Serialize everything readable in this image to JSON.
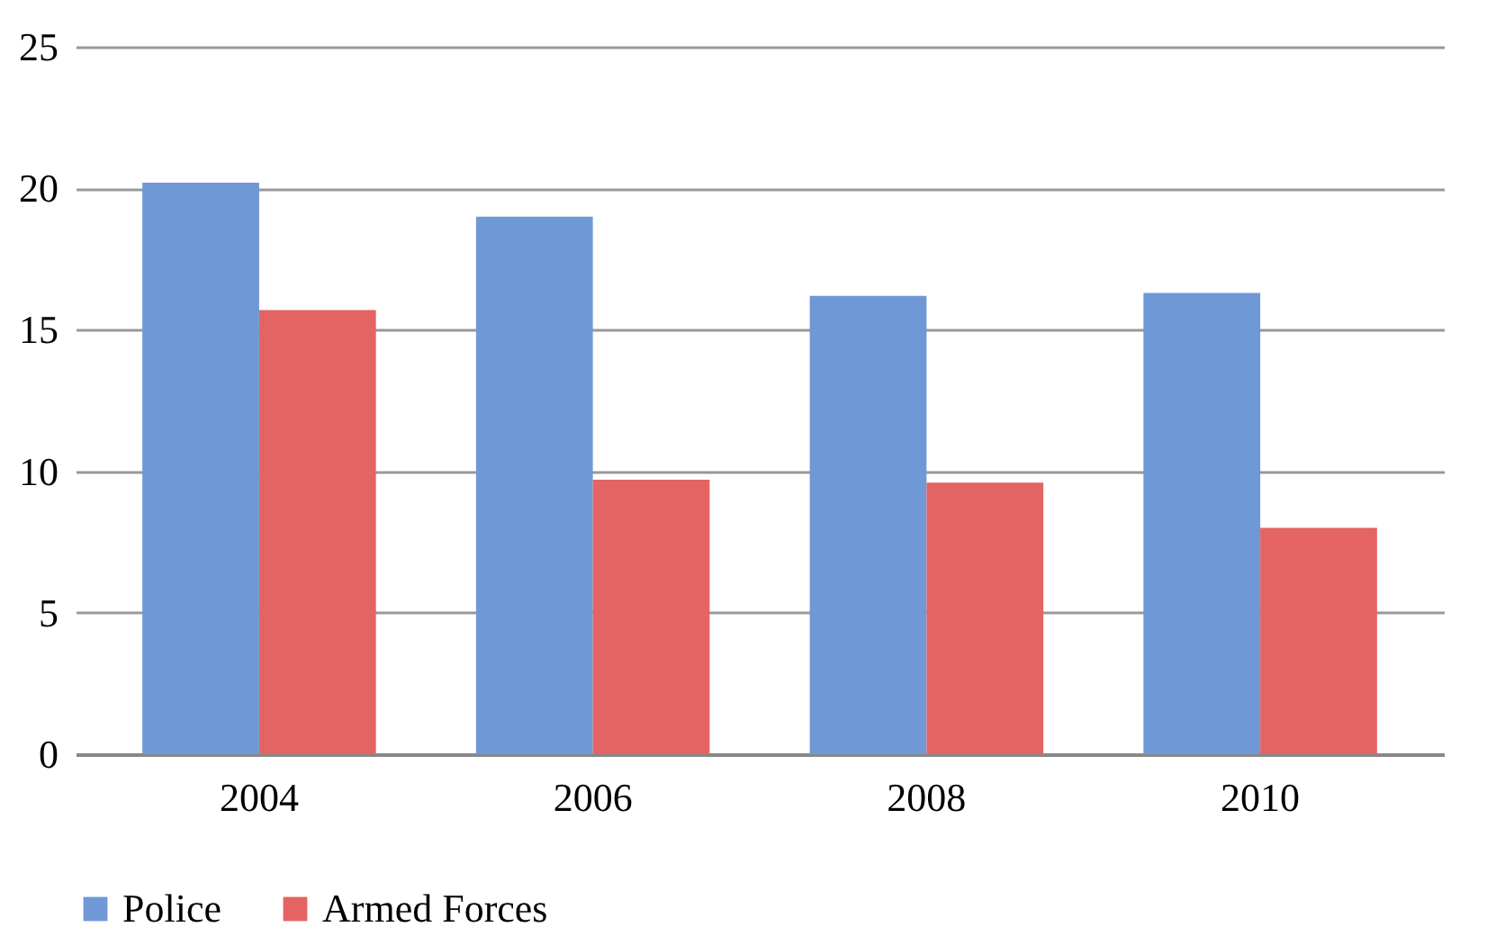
{
  "chart_data": {
    "type": "bar",
    "categories": [
      "2004",
      "2006",
      "2008",
      "2010"
    ],
    "series": [
      {
        "name": "Police",
        "color": "#6f98d6",
        "values": [
          20.2,
          19.0,
          16.2,
          16.3
        ]
      },
      {
        "name": "Armed Forces",
        "color": "#e46464",
        "values": [
          15.7,
          9.7,
          9.6,
          8.0
        ]
      }
    ],
    "ylim": [
      0,
      25
    ],
    "yticks": [
      0,
      5,
      10,
      15,
      20,
      25
    ],
    "grid": "y",
    "legend": "bottom"
  }
}
